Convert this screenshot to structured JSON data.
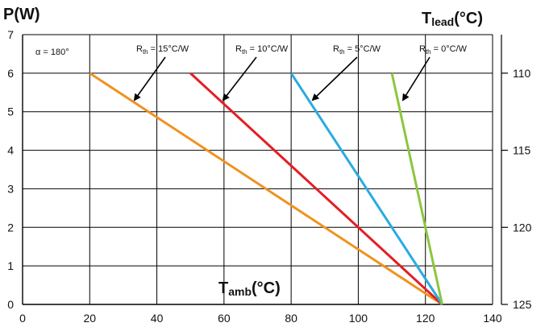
{
  "chart_data": {
    "type": "line",
    "xlabel": {
      "main": "T",
      "sub": "amb",
      "unit": "(°C)"
    },
    "ylabel": "P(W)",
    "y2label": {
      "main": "T",
      "sub": "lead",
      "unit": "(°C)"
    },
    "xlim": [
      0,
      140
    ],
    "ylim": [
      0,
      7
    ],
    "x_ticks": [
      0,
      20,
      40,
      60,
      80,
      100,
      120,
      140
    ],
    "y_ticks": [
      0,
      1,
      2,
      3,
      4,
      5,
      6,
      7
    ],
    "y2_ticks": [
      110,
      115,
      120,
      125
    ],
    "y2_mapping": "T_lead = 125 - 2.5 * P",
    "grid": true,
    "condition_label": "α = 180°",
    "series": [
      {
        "name": "Rth = 15°C/W",
        "label_main": "R",
        "label_sub": "th",
        "label_rest": " = 15°C/W",
        "color": "#f0921e",
        "x": [
          20,
          125
        ],
        "y": [
          6,
          0
        ]
      },
      {
        "name": "Rth = 10°C/W",
        "label_main": "R",
        "label_sub": "th",
        "label_rest": " = 10°C/W",
        "color": "#e31e24",
        "x": [
          50,
          125
        ],
        "y": [
          6,
          0
        ]
      },
      {
        "name": "Rth = 5°C/W",
        "label_main": "R",
        "label_sub": "th",
        "label_rest": " = 5°C/W",
        "color": "#29abe2",
        "x": [
          80,
          125
        ],
        "y": [
          6,
          0
        ]
      },
      {
        "name": "Rth = 0°C/W",
        "label_main": "R",
        "label_sub": "th",
        "label_rest": " = 0°C/W",
        "color": "#8cc63f",
        "x": [
          110,
          125
        ],
        "y": [
          6,
          0
        ]
      }
    ]
  }
}
